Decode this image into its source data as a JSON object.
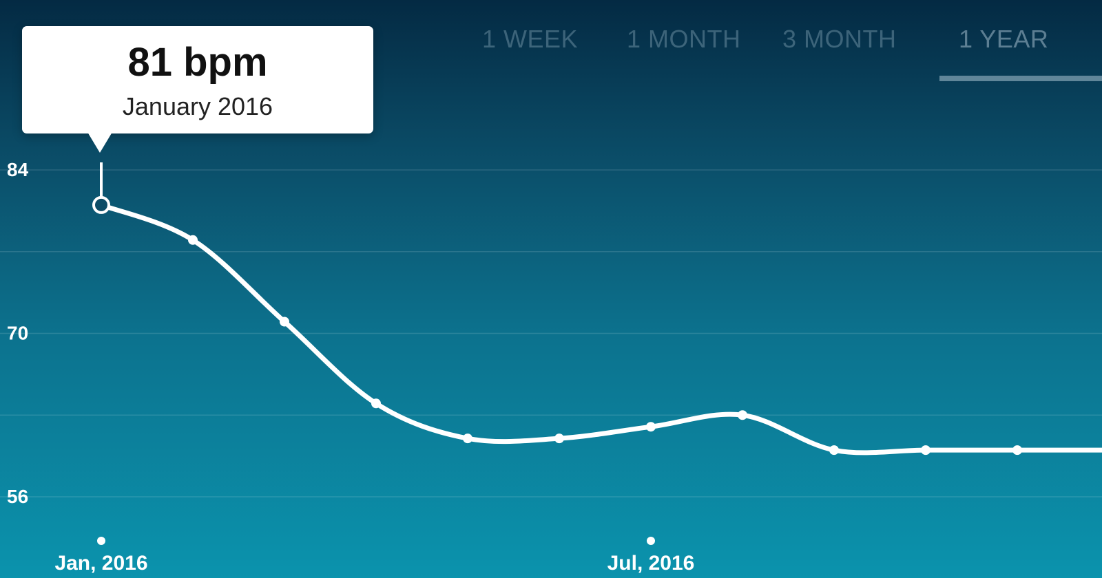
{
  "tabs": [
    {
      "label": "1 WEEK",
      "active": false
    },
    {
      "label": "1 MONTH",
      "active": false
    },
    {
      "label": "3 MONTH",
      "active": false
    },
    {
      "label": "1 YEAR",
      "active": true
    }
  ],
  "tooltip": {
    "value": "81 bpm",
    "date": "January 2016"
  },
  "colors": {
    "background_top": "#042a43",
    "background_bottom": "#0b93ad",
    "line": "#ffffff",
    "tooltip_background": "#ffffff"
  },
  "chart_data": {
    "type": "line",
    "title": "",
    "xlabel": "",
    "ylabel": "",
    "x": [
      "Jan 2016",
      "Feb 2016",
      "Mar 2016",
      "Apr 2016",
      "May 2016",
      "Jun 2016",
      "Jul 2016",
      "Aug 2016",
      "Sep 2016",
      "Oct 2016",
      "Nov 2016",
      "Dec 2016"
    ],
    "series": [
      {
        "values": [
          81,
          78,
          71,
          64,
          61,
          61,
          62,
          63,
          60,
          60,
          60,
          60
        ]
      }
    ],
    "selected_index": 0,
    "yticks": [
      "84",
      "70",
      "56"
    ],
    "xticks": [
      {
        "label": "Jan, 2016",
        "x": "Jan 2016"
      },
      {
        "label": "Jul, 2016",
        "x": "Jul 2016"
      }
    ],
    "ylim": [
      56,
      84
    ],
    "grid": true,
    "legend": "none"
  }
}
